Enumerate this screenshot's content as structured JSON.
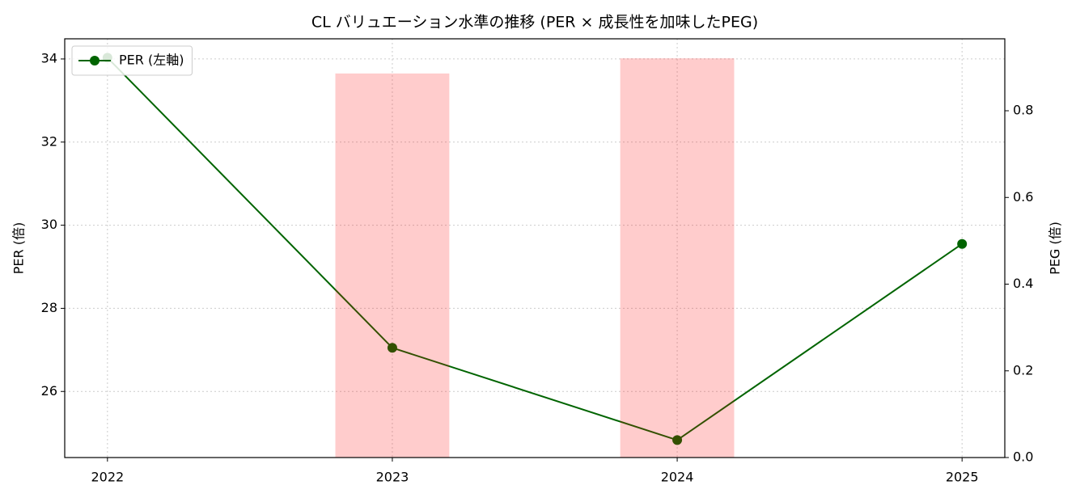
{
  "chart_data": {
    "type": "line_bar",
    "title": "CL バリュエーション水準の推移 (PER × 成長性を加味したPEG)",
    "ylabel": "PER (倍)",
    "y2label": "PEG (倍)",
    "x": [
      2022,
      2023,
      2024,
      2025
    ],
    "series": [
      {
        "name": "PER (左軸)",
        "type": "line",
        "color": "#006400",
        "values": [
          34.03,
          27.05,
          24.83,
          29.55
        ]
      },
      {
        "type": "bar",
        "axis": "y2",
        "color": "#ff0000",
        "values": [
          null,
          0.886,
          0.921,
          null
        ]
      }
    ],
    "xlim": [
      2021.85,
      2025.15
    ],
    "xticks": [
      2022,
      2023,
      2024,
      2025
    ],
    "ylim": [
      24.41,
      34.485
    ],
    "yticks": [
      26,
      28,
      30,
      32,
      34
    ],
    "y2lim": [
      0,
      0.966
    ],
    "y2ticks": [
      {
        "value": 0,
        "label": "0.0"
      },
      0.2,
      0.4,
      0.6,
      0.8
    ],
    "grid": true,
    "legend": "upper left"
  }
}
